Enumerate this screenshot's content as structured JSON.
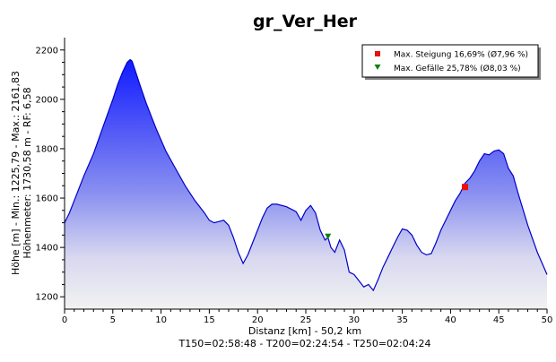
{
  "chart_data": {
    "type": "area",
    "title": "gr_Ver_Her",
    "xlabel": "Distanz [km] - 50,2 km",
    "ylabel_line1": "Höhe [m] - Min.: 1225,79 - Max.: 2161,83",
    "ylabel_line2": "Höhenmeter: 1730,58 m - RF: 6,58",
    "footer": "T150=02:58:48 - T200=02:24:54 - T250=02:04:24",
    "xlim": [
      0,
      50
    ],
    "ylim": [
      1150,
      2250
    ],
    "x_ticks": [
      0,
      5,
      10,
      15,
      20,
      25,
      30,
      35,
      40,
      45,
      50
    ],
    "y_ticks": [
      1200,
      1400,
      1600,
      1800,
      2000,
      2200
    ],
    "legend_position": "top-right",
    "legend": [
      {
        "label": "Max. Steigung 16,69% (Ø7,96 %)",
        "marker": "square",
        "color": "#e81010"
      },
      {
        "label": "Max. Gefälle 25,78% (Ø8,03 %)",
        "marker": "triangle-down",
        "color": "#108010"
      }
    ],
    "markers": [
      {
        "name": "max-steigung",
        "x": 41.5,
        "y": 1645,
        "marker": "square",
        "color": "#e81010"
      },
      {
        "name": "max-gefaelle",
        "x": 27.3,
        "y": 1445,
        "marker": "triangle-down",
        "color": "#108010"
      }
    ],
    "profile": {
      "x": [
        0,
        0.5,
        1,
        2,
        3,
        4,
        5,
        5.5,
        6,
        6.5,
        6.8,
        7,
        7.3,
        7.8,
        8.5,
        9.5,
        10.5,
        11.5,
        12.5,
        13.5,
        14.5,
        15,
        15.5,
        16,
        16.5,
        17,
        17.5,
        18,
        18.5,
        19,
        19.5,
        20,
        20.5,
        21,
        21.5,
        22,
        23,
        24,
        24.5,
        25,
        25.5,
        26,
        26.5,
        27,
        27.3,
        27.6,
        28,
        28.5,
        29,
        29.5,
        30,
        30.5,
        31,
        31.5,
        32,
        32.5,
        33,
        33.5,
        34,
        34.5,
        35,
        35.5,
        36,
        36.5,
        37,
        37.5,
        38,
        38.5,
        39,
        39.5,
        40,
        40.5,
        41,
        41.5,
        42,
        42.5,
        43,
        43.5,
        44,
        44.5,
        45,
        45.5,
        46,
        46.5,
        47,
        48,
        49,
        50
      ],
      "y": [
        1500,
        1540,
        1590,
        1690,
        1780,
        1890,
        2000,
        2060,
        2110,
        2150,
        2161,
        2155,
        2120,
        2060,
        1980,
        1880,
        1790,
        1720,
        1650,
        1590,
        1540,
        1510,
        1500,
        1505,
        1510,
        1490,
        1440,
        1380,
        1335,
        1370,
        1420,
        1470,
        1520,
        1560,
        1575,
        1575,
        1565,
        1545,
        1510,
        1550,
        1570,
        1540,
        1470,
        1430,
        1440,
        1400,
        1380,
        1430,
        1390,
        1300,
        1290,
        1265,
        1240,
        1250,
        1226,
        1270,
        1320,
        1360,
        1400,
        1440,
        1475,
        1470,
        1450,
        1410,
        1380,
        1370,
        1375,
        1420,
        1470,
        1510,
        1550,
        1590,
        1620,
        1660,
        1680,
        1710,
        1750,
        1780,
        1775,
        1790,
        1795,
        1780,
        1720,
        1690,
        1620,
        1490,
        1380,
        1290
      ]
    }
  }
}
